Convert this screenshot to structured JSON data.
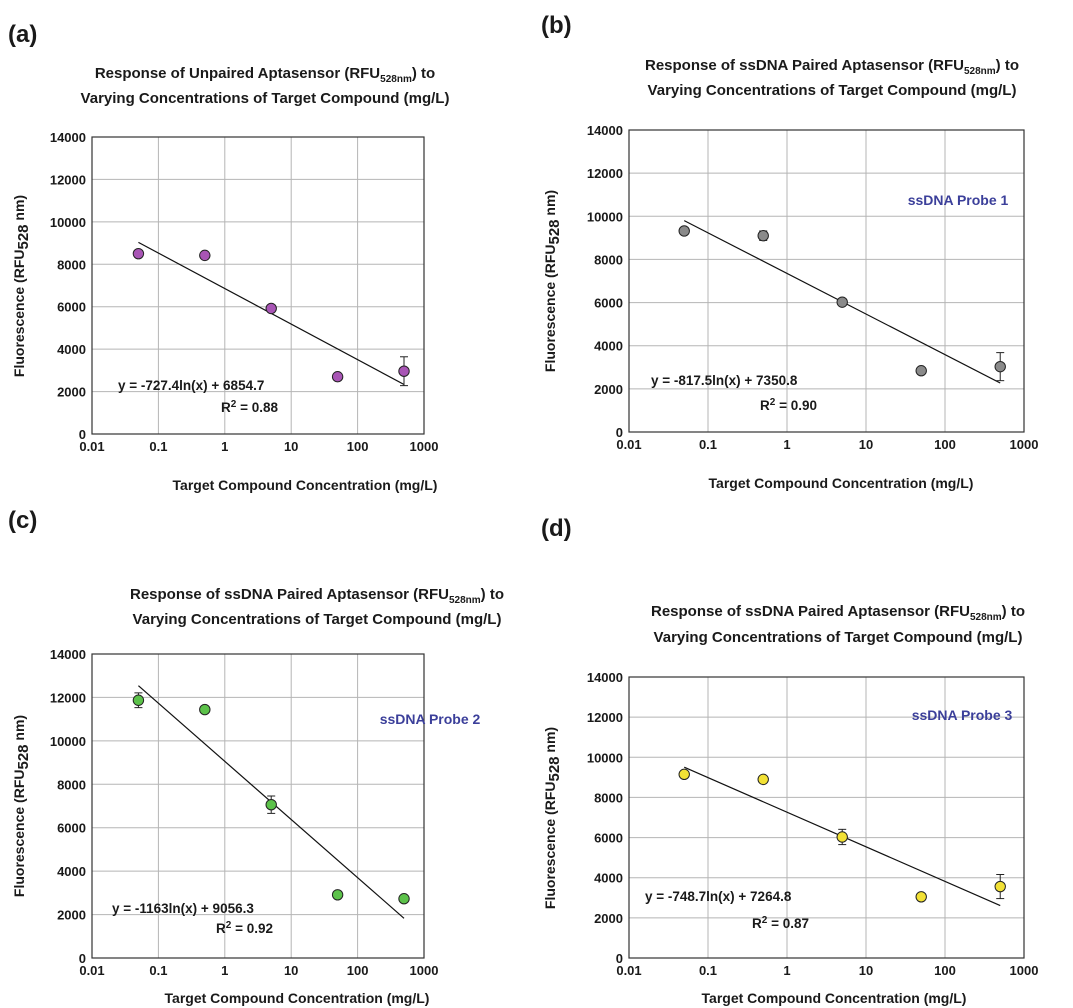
{
  "chart_data": [
    {
      "type": "scatter",
      "panel_label": "(a)",
      "title": [
        "Response of Unpaired Aptasensor (RFU",
        "528nm",
        ") to",
        "Varying Concentrations of Target Compound (mg/L)"
      ],
      "xlabel": "Target Compound Concentration (mg/L)",
      "ylabel": [
        "Fluorescence (RFU",
        "528",
        " nm)"
      ],
      "x_scale": "log",
      "xlim": [
        0.01,
        1000
      ],
      "ylim": [
        0,
        14000
      ],
      "x_ticks": [
        "0.01",
        "0.1",
        "1",
        "10",
        "100",
        "1000"
      ],
      "y_ticks": [
        "0",
        "2000",
        "4000",
        "6000",
        "8000",
        "10000",
        "12000",
        "14000"
      ],
      "grid": true,
      "marker_color": "#a855b5",
      "x": [
        0.05,
        0.5,
        5,
        50,
        500
      ],
      "y": [
        8500,
        8420,
        5920,
        2700,
        2960
      ],
      "error": [
        0,
        0,
        0,
        0,
        680
      ],
      "fit": {
        "slope": -727.4,
        "intercept": 6854.7
      },
      "equation": "y = -727.4ln(x) + 6854.7",
      "r2_prefix": "R",
      "r2_sup": "2",
      "r2_value": " = 0.88",
      "annotation": ""
    },
    {
      "type": "scatter",
      "panel_label": "(b)",
      "title": [
        "Response of ssDNA Paired Aptasensor (RFU",
        "528nm",
        ") to",
        "Varying Concentrations of Target Compound (mg/L)"
      ],
      "xlabel": "Target Compound Concentration (mg/L)",
      "ylabel": [
        "Fluorescence (RFU",
        "528",
        " nm)"
      ],
      "x_scale": "log",
      "xlim": [
        0.01,
        1000
      ],
      "ylim": [
        0,
        14000
      ],
      "x_ticks": [
        "0.01",
        "0.1",
        "1",
        "10",
        "100",
        "1000"
      ],
      "y_ticks": [
        "0",
        "2000",
        "4000",
        "6000",
        "8000",
        "10000",
        "12000",
        "14000"
      ],
      "grid": true,
      "marker_color": "#8a8a8a",
      "x": [
        0.05,
        0.5,
        5,
        50,
        500
      ],
      "y": [
        9320,
        9100,
        6020,
        2840,
        3030
      ],
      "error": [
        0,
        220,
        0,
        0,
        650
      ],
      "fit": {
        "slope": -817.5,
        "intercept": 7350.8
      },
      "equation": "y = -817.5ln(x) + 7350.8",
      "r2_prefix": "R",
      "r2_sup": "2",
      "r2_value": " = 0.90",
      "annotation": "ssDNA Probe 1"
    },
    {
      "type": "scatter",
      "panel_label": "(c)",
      "title": [
        "Response of ssDNA Paired Aptasensor (RFU",
        "528nm",
        ") to",
        "Varying Concentrations of Target Compound (mg/L)"
      ],
      "xlabel": "Target Compound Concentration (mg/L)",
      "ylabel": [
        "Fluorescence (RFU",
        "528",
        " nm)"
      ],
      "x_scale": "log",
      "xlim": [
        0.01,
        1000
      ],
      "ylim": [
        0,
        14000
      ],
      "x_ticks": [
        "0.01",
        "0.1",
        "1",
        "10",
        "100",
        "1000"
      ],
      "y_ticks": [
        "0",
        "2000",
        "4000",
        "6000",
        "8000",
        "10000",
        "12000",
        "14000"
      ],
      "grid": true,
      "marker_color": "#5cc24a",
      "x": [
        0.05,
        0.5,
        5,
        50,
        500
      ],
      "y": [
        11870,
        11440,
        7060,
        2910,
        2730
      ],
      "error": [
        340,
        0,
        400,
        0,
        0
      ],
      "fit": {
        "slope": -1163,
        "intercept": 9056.3
      },
      "equation": "y = -1163ln(x) + 9056.3",
      "r2_prefix": "R",
      "r2_sup": "2",
      "r2_value": " = 0.92",
      "annotation": "ssDNA Probe 2"
    },
    {
      "type": "scatter",
      "panel_label": "(d)",
      "title": [
        "Response of ssDNA Paired Aptasensor (RFU",
        "528nm",
        ") to",
        "Varying Concentrations of Target Compound (mg/L)"
      ],
      "xlabel": "Target Compound Concentration (mg/L)",
      "ylabel": [
        "Fluorescence (RFU",
        "528",
        " nm)"
      ],
      "x_scale": "log",
      "xlim": [
        0.01,
        1000
      ],
      "ylim": [
        0,
        14000
      ],
      "x_ticks": [
        "0.01",
        "0.1",
        "1",
        "10",
        "100",
        "1000"
      ],
      "y_ticks": [
        "0",
        "2000",
        "4000",
        "6000",
        "8000",
        "10000",
        "12000",
        "14000"
      ],
      "grid": true,
      "marker_color": "#f2e135",
      "x": [
        0.05,
        0.5,
        5,
        50,
        500
      ],
      "y": [
        9150,
        8900,
        6030,
        3050,
        3560
      ],
      "error": [
        0,
        0,
        380,
        0,
        600
      ],
      "fit": {
        "slope": -748.7,
        "intercept": 7264.8
      },
      "equation": "y = -748.7ln(x) + 7264.8",
      "r2_prefix": "R",
      "r2_sup": "2",
      "r2_value": " = 0.87",
      "annotation": "ssDNA Probe 3"
    }
  ]
}
